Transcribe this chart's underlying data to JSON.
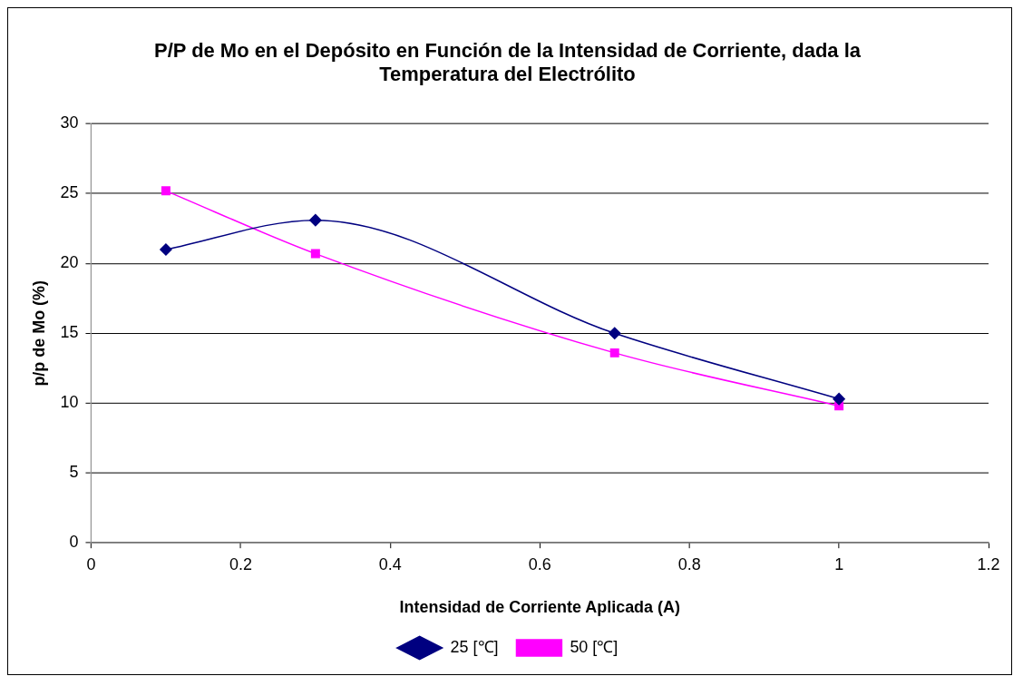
{
  "chart_data": {
    "type": "line",
    "title": "P/P de Mo en el Depósito en Función de la Intensidad de Corriente, dada la Temperatura del Electrólito",
    "xlabel": "Intensidad de Corriente Aplicada (A)",
    "ylabel": "p/p de Mo (%)",
    "x": [
      0.1,
      0.3,
      0.7,
      1
    ],
    "series": [
      {
        "name": "25 [℃]",
        "color": "#000080",
        "marker": "diamond",
        "values": [
          21.0,
          23.1,
          15.0,
          10.3
        ]
      },
      {
        "name": "50 [℃]",
        "color": "#ff00ff",
        "marker": "square",
        "values": [
          25.2,
          20.7,
          13.6,
          9.8
        ]
      }
    ],
    "xlim": [
      0,
      1.2
    ],
    "xticks": [
      0,
      0.2,
      0.4,
      0.6,
      0.8,
      1,
      1.2
    ],
    "ylim": [
      0,
      30
    ],
    "yticks": [
      0,
      5,
      10,
      15,
      20,
      25,
      30
    ],
    "grid": "y",
    "legend": "bottom"
  }
}
